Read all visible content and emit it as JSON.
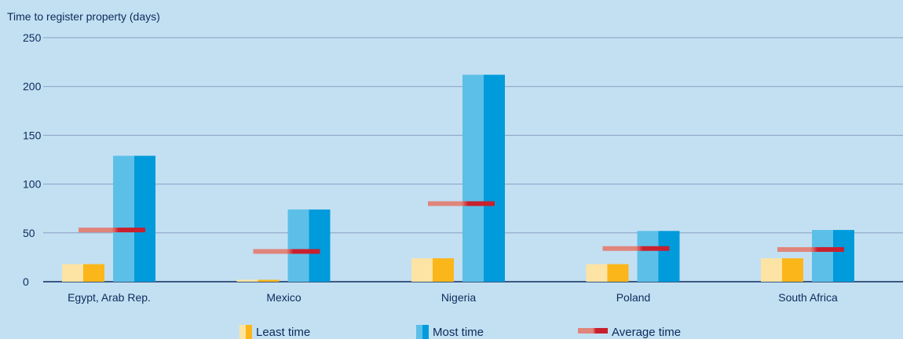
{
  "chart_data": {
    "type": "bar",
    "title": "Time to register property (days)",
    "categories": [
      "Egypt, Arab Rep.",
      "Mexico",
      "Nigeria",
      "Poland",
      "South Africa"
    ],
    "series": [
      {
        "name": "Least time",
        "values": [
          18,
          2,
          24,
          18,
          24
        ]
      },
      {
        "name": "Most time",
        "values": [
          129,
          74,
          212,
          52,
          53
        ]
      },
      {
        "name": "Average time",
        "values": [
          53,
          31,
          80,
          34,
          33
        ]
      }
    ],
    "yticks": [
      0,
      50,
      100,
      150,
      200,
      250
    ],
    "ylim": [
      0,
      250
    ],
    "grid": true,
    "legend": "bottom",
    "colors": {
      "least": "#fbb61a",
      "least_light": "#fde3a4",
      "most": "#009bdb",
      "most_light": "#5cbfe8",
      "avg": "#c8202e",
      "avg_light": "#e0857c",
      "grid": "#8a9ec2",
      "axis": "#0d2a5c",
      "text": "#0d2a5c",
      "background": "#c3e0f2"
    }
  }
}
